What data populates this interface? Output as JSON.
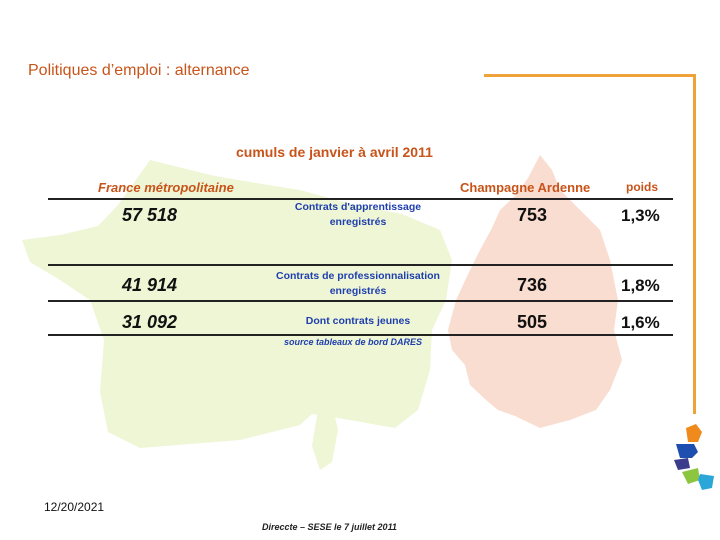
{
  "title": "Politiques d’emploi : alternance",
  "subtitle": "cumuls de janvier à avril 2011",
  "columns": {
    "france": "France métropolitaine",
    "region": "Champagne Ardenne",
    "weight": "poids"
  },
  "rows": [
    {
      "france": "57 518",
      "label_line1": "Contrats d'apprentissage",
      "label_line2": "enregistrés",
      "region": "753",
      "weight": "1,3%"
    },
    {
      "france": "41 914",
      "label_line1": "Contrats de professionnalisation",
      "label_line2": "enregistrés",
      "region": "736",
      "weight": "1,8%"
    },
    {
      "france": "31 092",
      "label_line1": "Dont contrats jeunes",
      "label_line2": "",
      "region": "505",
      "weight": "1,6%"
    }
  ],
  "source": "source tableaux de bord DARES",
  "date": "12/20/2021",
  "footer": "Direccte – SESE le 7 juillet 2011",
  "colors": {
    "accent": "#c8541a",
    "label_blue": "#1f3fae",
    "france_map": "#eef6d6",
    "region_map": "#f9ddd0"
  }
}
